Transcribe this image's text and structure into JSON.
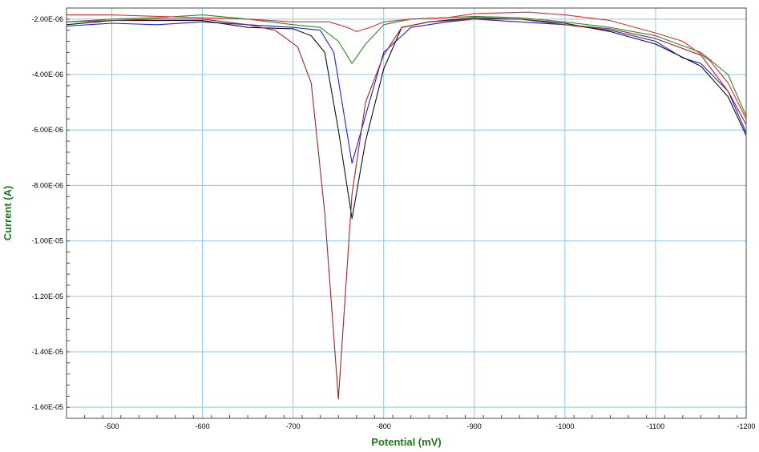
{
  "chart_data": {
    "type": "line",
    "title": "",
    "xlabel": "Potential (mV)",
    "ylabel": "Current (A)",
    "label_color": "#1a7a1a",
    "grid_color": "#8ec5ee",
    "grid": true,
    "xlim": [
      -450,
      -1200
    ],
    "ylim": [
      -1.64e-05,
      -1.6e-06
    ],
    "x_ticks": [
      -500,
      -600,
      -700,
      -800,
      -900,
      -1000,
      -1100,
      -1200
    ],
    "x_tick_labels": [
      "-500",
      "-600",
      "-700",
      "-800",
      "-900",
      "-1000",
      "-1100",
      "-1200"
    ],
    "y_ticks": [
      -2e-06,
      -4e-06,
      -6e-06,
      -8e-06,
      -1e-05,
      -1.2e-05,
      -1.4e-05,
      -1.6e-05
    ],
    "y_tick_labels": [
      "-2.00E-06",
      "-4.00E-06",
      "-6.00E-06",
      "-8.00E-06",
      "-1.00E-05",
      "-1.20E-05",
      "-1.40E-05",
      "-1.60E-05"
    ],
    "series": [
      {
        "color": "#1f1fe0",
        "x": [
          -450,
          -500,
          -550,
          -600,
          -650,
          -700,
          -730,
          -745,
          -765,
          -785,
          -800,
          -830,
          -870,
          -900,
          -950,
          -1000,
          -1050,
          -1100,
          -1130,
          -1150,
          -1180,
          -1200
        ],
        "y": [
          -2.25e-06,
          -2.15e-06,
          -2.2e-06,
          -2.1e-06,
          -2.2e-06,
          -2.3e-06,
          -2.4e-06,
          -3.2e-06,
          -7.2e-06,
          -4.9e-06,
          -3.2e-06,
          -2.3e-06,
          -2.1e-06,
          -2e-06,
          -2.1e-06,
          -2.2e-06,
          -2.4e-06,
          -2.8e-06,
          -3.4e-06,
          -3.6e-06,
          -4.6e-06,
          -6.1e-06
        ]
      },
      {
        "color": "#111111",
        "x": [
          -450,
          -500,
          -550,
          -600,
          -650,
          -700,
          -720,
          -735,
          -750,
          -765,
          -780,
          -800,
          -820,
          -850,
          -900,
          -950,
          -1000,
          -1050,
          -1100,
          -1150,
          -1180,
          -1200
        ],
        "y": [
          -2.2e-06,
          -2.05e-06,
          -2.05e-06,
          -2.05e-06,
          -2.3e-06,
          -2.35e-06,
          -2.6e-06,
          -3.2e-06,
          -6e-06,
          -9.2e-06,
          -6.4e-06,
          -3.8e-06,
          -2.3e-06,
          -2.1e-06,
          -1.95e-06,
          -2e-06,
          -2.15e-06,
          -2.45e-06,
          -2.9e-06,
          -3.7e-06,
          -4.8e-06,
          -6.2e-06
        ]
      },
      {
        "color": "#a02424",
        "x": [
          -450,
          -500,
          -550,
          -600,
          -650,
          -680,
          -705,
          -720,
          -735,
          -750,
          -765,
          -780,
          -800,
          -820,
          -850,
          -900,
          -950,
          -1000,
          -1050,
          -1100,
          -1150,
          -1180,
          -1200
        ],
        "y": [
          -2.1e-06,
          -2.05e-06,
          -2e-06,
          -2e-06,
          -2.2e-06,
          -2.4e-06,
          -3e-06,
          -4.3e-06,
          -9e-06,
          -1.57e-05,
          -8.3e-06,
          -5e-06,
          -3.3e-06,
          -2.3e-06,
          -2.1e-06,
          -2e-06,
          -2e-06,
          -2.2e-06,
          -2.35e-06,
          -2.7e-06,
          -3.3e-06,
          -4.6e-06,
          -5.8e-06
        ]
      },
      {
        "color": "#2a8a2a",
        "x": [
          -450,
          -500,
          -550,
          -600,
          -650,
          -700,
          -730,
          -750,
          -765,
          -780,
          -800,
          -830,
          -870,
          -900,
          -950,
          -1000,
          -1050,
          -1100,
          -1150,
          -1180,
          -1200
        ],
        "y": [
          -2.1e-06,
          -2e-06,
          -1.95e-06,
          -1.85e-06,
          -2e-06,
          -2.2e-06,
          -2.3e-06,
          -2.8e-06,
          -3.6e-06,
          -2.9e-06,
          -2.2e-06,
          -2e-06,
          -1.95e-06,
          -1.9e-06,
          -1.95e-06,
          -2.1e-06,
          -2.3e-06,
          -2.6e-06,
          -3.2e-06,
          -4e-06,
          -5.5e-06
        ]
      },
      {
        "color": "#e03030",
        "x": [
          -450,
          -500,
          -550,
          -600,
          -650,
          -700,
          -740,
          -760,
          -770,
          -785,
          -800,
          -830,
          -870,
          -900,
          -960,
          -1000,
          -1050,
          -1100,
          -1130,
          -1160,
          -1180,
          -1200
        ],
        "y": [
          -1.85e-06,
          -1.85e-06,
          -1.9e-06,
          -1.95e-06,
          -2e-06,
          -2.1e-06,
          -2.1e-06,
          -2.3e-06,
          -2.45e-06,
          -2.3e-06,
          -2.1e-06,
          -2e-06,
          -1.95e-06,
          -1.8e-06,
          -1.75e-06,
          -1.85e-06,
          -2.05e-06,
          -2.5e-06,
          -2.8e-06,
          -3.5e-06,
          -4.3e-06,
          -5.6e-06
        ]
      }
    ]
  }
}
